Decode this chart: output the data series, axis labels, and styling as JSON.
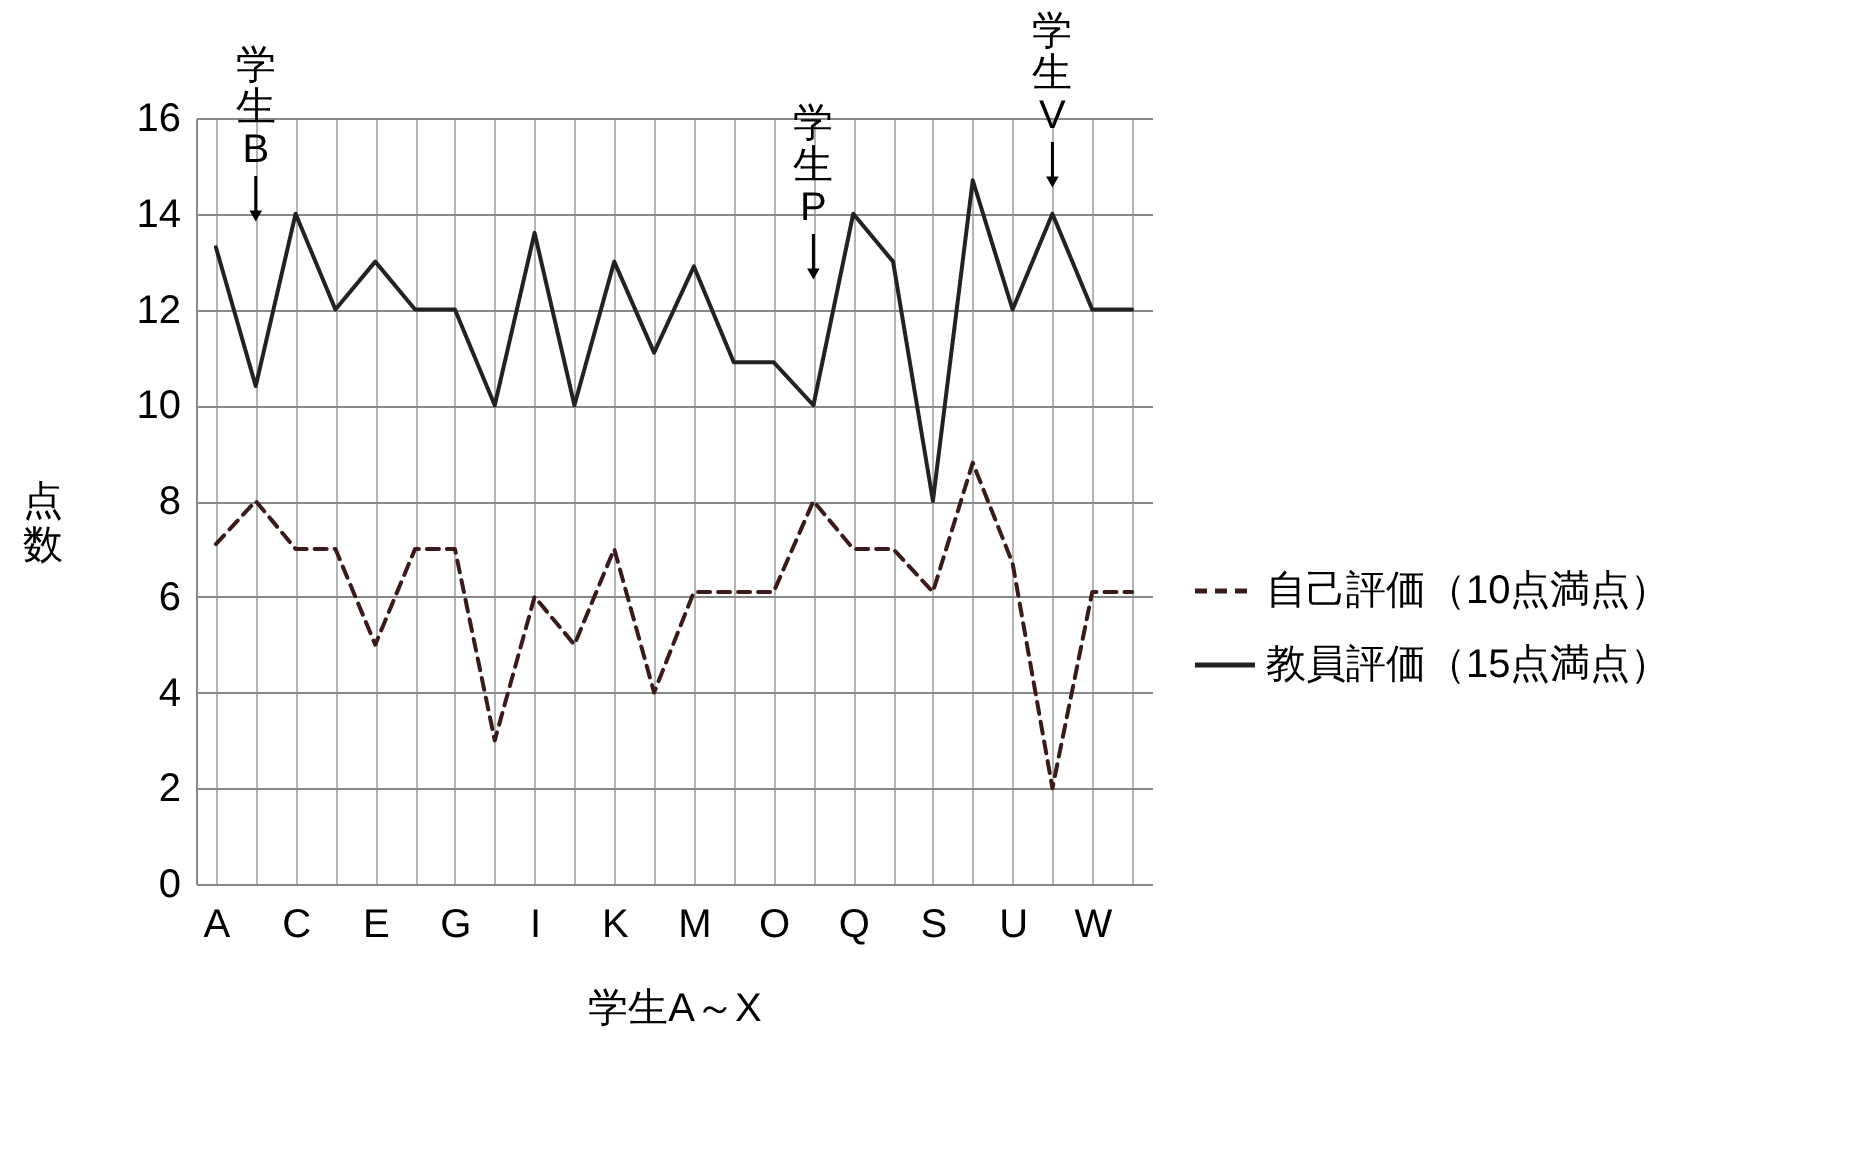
{
  "chart_data": {
    "type": "line",
    "categories": [
      "A",
      null,
      "C",
      null,
      "E",
      null,
      "G",
      null,
      "I",
      null,
      "K",
      null,
      "M",
      null,
      "O",
      null,
      "Q",
      null,
      "S",
      null,
      "U",
      null,
      "W",
      null
    ],
    "series": [
      {
        "name": "自己評価（10点満点）",
        "color": "#3b1a1a",
        "line_style": "dashed",
        "values": [
          7.1,
          8,
          7,
          7,
          5,
          7,
          7,
          3,
          6,
          5,
          7,
          4,
          6.1,
          6.1,
          6.1,
          8,
          7,
          7,
          6.1,
          8.8,
          6.7,
          2,
          6.1,
          6.1
        ]
      },
      {
        "name": "教員評価（15点満点）",
        "color": "#222222",
        "line_style": "solid",
        "values": [
          13.3,
          10.4,
          14,
          12,
          13,
          12,
          12,
          10,
          13.6,
          10,
          13,
          11.1,
          12.9,
          10.9,
          10.9,
          10,
          14,
          13,
          8,
          14.7,
          12,
          14,
          12,
          12
        ]
      }
    ],
    "xlabel": "学生A～X",
    "ylabel": "点数",
    "ylim": [
      0,
      16
    ],
    "yticks": [
      0,
      2,
      4,
      6,
      8,
      10,
      12,
      14,
      16
    ],
    "grid": true,
    "legend": "right",
    "marker": "none",
    "annotations": [
      "学生B",
      "学生P",
      "学生V"
    ]
  }
}
